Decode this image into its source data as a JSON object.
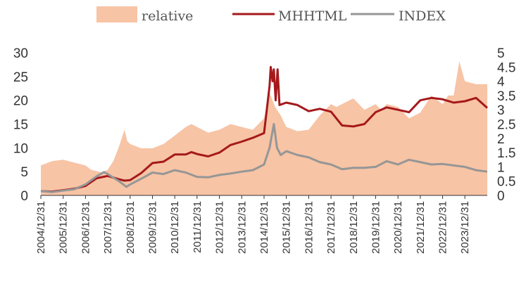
{
  "chart_data": {
    "type": "line",
    "legend": {
      "placement": "top",
      "entries": [
        {
          "name": "relative",
          "style": "area",
          "color": "#F7C4A5"
        },
        {
          "name": "MHHTML",
          "style": "line",
          "color": "#A5191C"
        },
        {
          "name": "INDEX",
          "style": "line",
          "color": "#969696"
        }
      ]
    },
    "x_ticks": [
      "2004/12/31",
      "2005/12/31",
      "2006/12/31",
      "2007/12/31",
      "2008/12/31",
      "2009/12/31",
      "2010/12/31",
      "2011/12/31",
      "2012/12/31",
      "2013/12/31",
      "2014/12/31",
      "2015/12/31",
      "2016/12/31",
      "2017/12/31",
      "2018/12/31",
      "2019/12/31",
      "2020/12/31",
      "2021/12/31",
      "2022/12/31",
      "2023/12/31"
    ],
    "x_range": [
      "2004/12/31",
      "2024/12/31"
    ],
    "left_axis": {
      "ylim": [
        0,
        30
      ],
      "ticks": [
        "0",
        "5",
        "10",
        "15",
        "20",
        "25",
        "30"
      ],
      "series": [
        "MHHTML",
        "INDEX"
      ]
    },
    "right_axis": {
      "ylim": [
        0,
        5
      ],
      "ticks": [
        "0",
        "0.5",
        "1",
        "1.5",
        "2",
        "2.5",
        "3",
        "3.5",
        "4",
        "4.5",
        "5"
      ],
      "series": [
        "relative"
      ]
    },
    "grid": false,
    "series": [
      {
        "name": "relative",
        "type": "area",
        "axis": "right",
        "color": "#F7C4A5",
        "points": [
          [
            "2004/12/31",
            1.05
          ],
          [
            "2005/06/30",
            1.2
          ],
          [
            "2005/12/31",
            1.25
          ],
          [
            "2006/06/30",
            1.15
          ],
          [
            "2006/12/31",
            1.05
          ],
          [
            "2007/03/31",
            0.9
          ],
          [
            "2007/06/30",
            0.85
          ],
          [
            "2007/09/30",
            0.8
          ],
          [
            "2007/12/31",
            0.9
          ],
          [
            "2008/03/31",
            1.2
          ],
          [
            "2008/06/30",
            1.7
          ],
          [
            "2008/09/30",
            2.3
          ],
          [
            "2008/11/15",
            1.9
          ],
          [
            "2008/12/31",
            1.8
          ],
          [
            "2009/06/30",
            1.65
          ],
          [
            "2009/12/31",
            1.65
          ],
          [
            "2010/06/30",
            1.8
          ],
          [
            "2010/12/31",
            2.1
          ],
          [
            "2011/06/30",
            2.4
          ],
          [
            "2011/09/30",
            2.5
          ],
          [
            "2011/12/31",
            2.4
          ],
          [
            "2012/06/30",
            2.2
          ],
          [
            "2012/12/31",
            2.3
          ],
          [
            "2013/06/30",
            2.5
          ],
          [
            "2013/12/31",
            2.4
          ],
          [
            "2014/06/30",
            2.3
          ],
          [
            "2014/12/31",
            2.7
          ],
          [
            "2015/03/31",
            3.6
          ],
          [
            "2015/06/30",
            3.1
          ],
          [
            "2015/09/30",
            2.8
          ],
          [
            "2015/12/31",
            2.4
          ],
          [
            "2016/06/30",
            2.25
          ],
          [
            "2016/12/31",
            2.3
          ],
          [
            "2017/06/30",
            2.8
          ],
          [
            "2017/12/31",
            3.2
          ],
          [
            "2018/03/31",
            3.1
          ],
          [
            "2018/09/30",
            3.3
          ],
          [
            "2018/12/31",
            3.4
          ],
          [
            "2019/06/30",
            3.0
          ],
          [
            "2019/12/31",
            3.2
          ],
          [
            "2020/03/31",
            3.0
          ],
          [
            "2020/06/30",
            3.2
          ],
          [
            "2020/12/31",
            3.1
          ],
          [
            "2021/06/30",
            2.7
          ],
          [
            "2021/12/31",
            2.9
          ],
          [
            "2022/06/30",
            3.5
          ],
          [
            "2022/12/31",
            3.2
          ],
          [
            "2023/03/31",
            3.5
          ],
          [
            "2023/06/30",
            3.5
          ],
          [
            "2023/09/30",
            4.7
          ],
          [
            "2023/12/31",
            4.0
          ],
          [
            "2024/06/30",
            3.9
          ],
          [
            "2024/12/31",
            3.9
          ]
        ]
      },
      {
        "name": "MHHTML",
        "type": "line",
        "axis": "left",
        "color": "#A5191C",
        "points": [
          [
            "2004/12/31",
            0.9
          ],
          [
            "2005/06/30",
            0.8
          ],
          [
            "2005/12/31",
            1.1
          ],
          [
            "2006/06/30",
            1.4
          ],
          [
            "2006/12/31",
            2.0
          ],
          [
            "2007/06/30",
            3.6
          ],
          [
            "2007/12/31",
            4.1
          ],
          [
            "2008/06/30",
            3.4
          ],
          [
            "2008/09/30",
            3.1
          ],
          [
            "2008/12/31",
            3.2
          ],
          [
            "2009/06/30",
            4.7
          ],
          [
            "2009/12/31",
            6.8
          ],
          [
            "2010/06/30",
            7.1
          ],
          [
            "2010/12/31",
            8.6
          ],
          [
            "2011/06/30",
            8.6
          ],
          [
            "2011/09/30",
            9.1
          ],
          [
            "2011/12/31",
            8.7
          ],
          [
            "2012/06/30",
            8.2
          ],
          [
            "2012/12/31",
            9.0
          ],
          [
            "2013/06/30",
            10.6
          ],
          [
            "2013/12/31",
            11.3
          ],
          [
            "2014/06/30",
            12.1
          ],
          [
            "2014/12/31",
            13.1
          ],
          [
            "2015/03/31",
            23.0
          ],
          [
            "2015/04/20",
            27.0
          ],
          [
            "2015/05/20",
            24.0
          ],
          [
            "2015/06/10",
            26.5
          ],
          [
            "2015/07/10",
            20.0
          ],
          [
            "2015/08/10",
            26.5
          ],
          [
            "2015/09/10",
            19.0
          ],
          [
            "2015/12/31",
            19.5
          ],
          [
            "2016/06/30",
            19.0
          ],
          [
            "2016/12/31",
            17.7
          ],
          [
            "2017/06/30",
            18.2
          ],
          [
            "2017/12/31",
            17.6
          ],
          [
            "2018/06/30",
            14.7
          ],
          [
            "2018/12/31",
            14.5
          ],
          [
            "2019/06/30",
            15.0
          ],
          [
            "2019/12/31",
            17.5
          ],
          [
            "2020/06/30",
            18.5
          ],
          [
            "2020/12/31",
            18.0
          ],
          [
            "2021/06/30",
            17.5
          ],
          [
            "2021/12/31",
            20.0
          ],
          [
            "2022/06/30",
            20.5
          ],
          [
            "2022/12/31",
            20.2
          ],
          [
            "2023/06/30",
            19.5
          ],
          [
            "2023/12/31",
            19.8
          ],
          [
            "2024/06/30",
            20.5
          ],
          [
            "2024/12/31",
            18.4
          ]
        ]
      },
      {
        "name": "INDEX",
        "type": "line",
        "axis": "left",
        "color": "#969696",
        "points": [
          [
            "2004/12/31",
            0.9
          ],
          [
            "2005/06/30",
            0.7
          ],
          [
            "2005/12/31",
            1.0
          ],
          [
            "2006/06/30",
            1.3
          ],
          [
            "2006/12/31",
            2.3
          ],
          [
            "2007/06/30",
            4.0
          ],
          [
            "2007/10/31",
            4.9
          ],
          [
            "2007/12/31",
            4.5
          ],
          [
            "2008/06/30",
            3.0
          ],
          [
            "2008/10/31",
            1.8
          ],
          [
            "2008/12/31",
            2.3
          ],
          [
            "2009/06/30",
            3.5
          ],
          [
            "2009/12/31",
            4.8
          ],
          [
            "2010/06/30",
            4.5
          ],
          [
            "2010/12/31",
            5.3
          ],
          [
            "2011/06/30",
            4.8
          ],
          [
            "2011/12/31",
            3.9
          ],
          [
            "2012/06/30",
            3.8
          ],
          [
            "2012/12/31",
            4.3
          ],
          [
            "2013/06/30",
            4.6
          ],
          [
            "2013/12/31",
            5.0
          ],
          [
            "2014/06/30",
            5.3
          ],
          [
            "2014/12/31",
            6.5
          ],
          [
            "2015/03/31",
            10.0
          ],
          [
            "2015/06/10",
            15.0
          ],
          [
            "2015/07/31",
            10.0
          ],
          [
            "2015/09/30",
            8.5
          ],
          [
            "2015/12/31",
            9.3
          ],
          [
            "2016/06/30",
            8.5
          ],
          [
            "2016/12/31",
            8.0
          ],
          [
            "2017/06/30",
            7.0
          ],
          [
            "2017/12/31",
            6.5
          ],
          [
            "2018/06/30",
            5.5
          ],
          [
            "2018/12/31",
            5.8
          ],
          [
            "2019/06/30",
            5.8
          ],
          [
            "2019/12/31",
            6.0
          ],
          [
            "2020/06/30",
            7.2
          ],
          [
            "2020/12/31",
            6.5
          ],
          [
            "2021/06/30",
            7.5
          ],
          [
            "2021/12/31",
            7.0
          ],
          [
            "2022/06/30",
            6.5
          ],
          [
            "2022/12/31",
            6.6
          ],
          [
            "2023/06/30",
            6.3
          ],
          [
            "2023/12/31",
            6.0
          ],
          [
            "2024/06/30",
            5.3
          ],
          [
            "2024/12/31",
            5.0
          ]
        ]
      }
    ]
  }
}
